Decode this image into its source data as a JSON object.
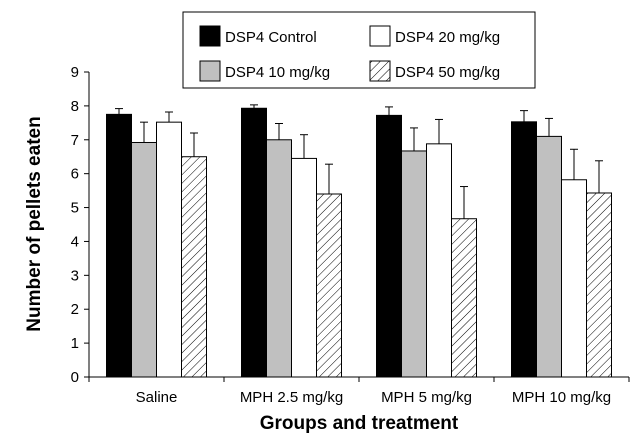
{
  "chart_data": {
    "type": "bar",
    "title": "",
    "xlabel": "Groups and treatment",
    "ylabel": "Number of pellets eaten",
    "ylim": [
      0,
      9
    ],
    "yticks": [
      "0",
      "1",
      "2",
      "3",
      "4",
      "5",
      "6",
      "7",
      "8",
      "9"
    ],
    "grid": false,
    "legend_position": "top",
    "categories": [
      "Saline",
      "MPH 2.5 mg/kg",
      "MPH 5 mg/kg",
      "MPH 10 mg/kg"
    ],
    "series": [
      {
        "name": "DSP4 Control",
        "fill": "black",
        "color": "#000000",
        "values": [
          7.75,
          7.93,
          7.72,
          7.53
        ],
        "errors": [
          0.17,
          0.1,
          0.25,
          0.33
        ]
      },
      {
        "name": "DSP4 10 mg/kg",
        "fill": "gray",
        "color": "#c0c0c0",
        "values": [
          6.92,
          7.0,
          6.67,
          7.1
        ],
        "errors": [
          0.6,
          0.48,
          0.68,
          0.53
        ]
      },
      {
        "name": "DSP4 20 mg/kg",
        "fill": "white",
        "color": "#ffffff",
        "values": [
          7.52,
          6.45,
          6.88,
          5.82
        ],
        "errors": [
          0.3,
          0.7,
          0.72,
          0.9
        ]
      },
      {
        "name": "DSP4 50 mg/kg",
        "fill": "hatch",
        "color": "#ffffff",
        "values": [
          6.5,
          5.4,
          4.67,
          5.43
        ],
        "errors": [
          0.7,
          0.88,
          0.95,
          0.95
        ]
      }
    ]
  }
}
